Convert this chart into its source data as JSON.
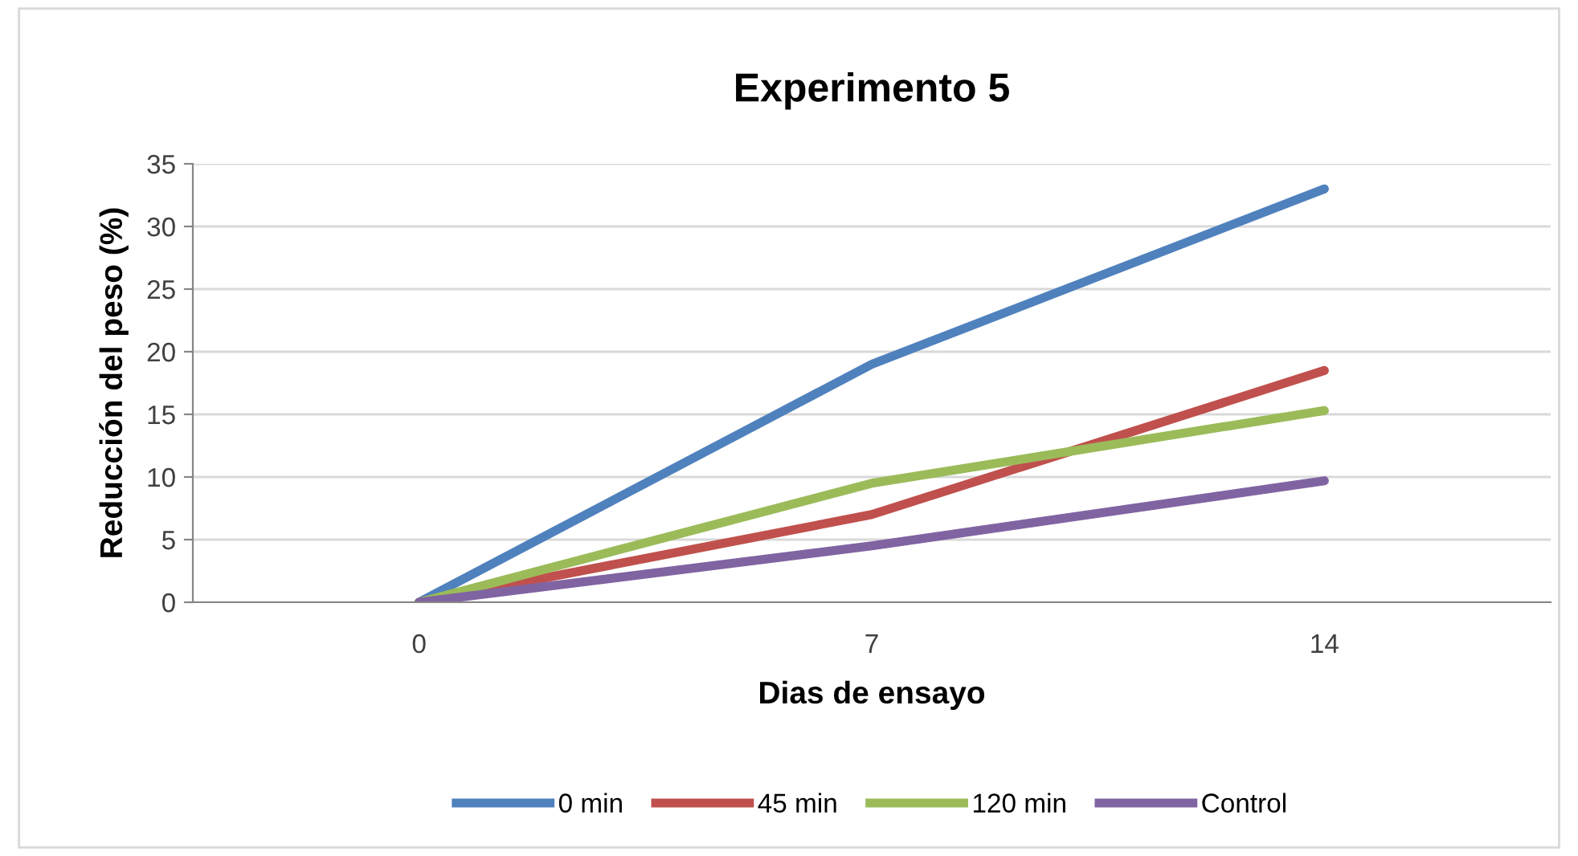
{
  "chart_data": {
    "type": "line",
    "title": "Experimento 5",
    "xlabel": "Dias de ensayo",
    "ylabel": "Reducción del peso (%)",
    "categories": [
      "0",
      "7",
      "14"
    ],
    "series": [
      {
        "name": "0 min",
        "color": "#4f81bd",
        "values": [
          0,
          19,
          33
        ]
      },
      {
        "name": "45 min",
        "color": "#c0504d",
        "values": [
          0,
          7,
          18.5
        ]
      },
      {
        "name": "120 min",
        "color": "#9bbb59",
        "values": [
          0,
          9.5,
          15.3
        ]
      },
      {
        "name": "Control",
        "color": "#8064a2",
        "values": [
          0,
          4.5,
          9.7
        ]
      }
    ],
    "ylim": [
      0,
      35
    ],
    "yticks": [
      0,
      5,
      10,
      15,
      20,
      25,
      30,
      35
    ],
    "grid": "y",
    "legend": "bottom",
    "marker": "none",
    "line_style": "solid"
  }
}
